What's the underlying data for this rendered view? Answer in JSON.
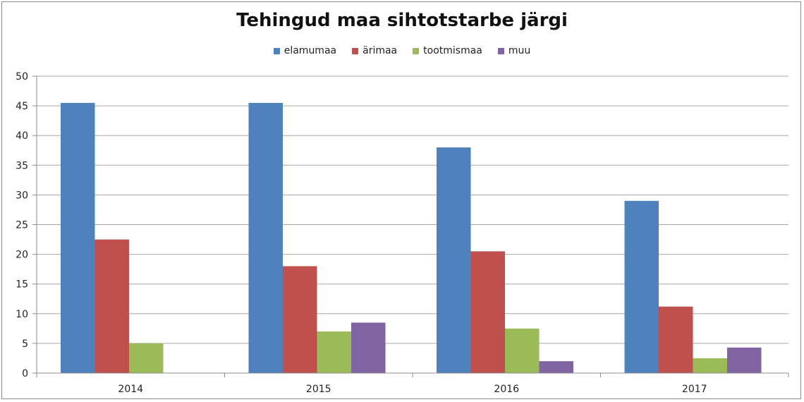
{
  "chart_data": {
    "type": "bar",
    "title": "Tehingud maa sihtotstarbe järgi",
    "xlabel": "",
    "ylabel": "",
    "categories": [
      "2014",
      "2015",
      "2016",
      "2017"
    ],
    "ylim": [
      0,
      50
    ],
    "yticks": [
      0,
      5,
      10,
      15,
      20,
      25,
      30,
      35,
      40,
      45,
      50
    ],
    "grid": true,
    "legend_position": "top",
    "series": [
      {
        "name": "elamumaa",
        "color": "#4F81BD",
        "values": [
          45.5,
          45.5,
          38,
          29
        ]
      },
      {
        "name": "ärimaa",
        "color": "#C0504D",
        "values": [
          22.5,
          18,
          20.5,
          11.2
        ]
      },
      {
        "name": "tootmismaa",
        "color": "#9BBB59",
        "values": [
          5,
          7,
          7.5,
          2.5
        ]
      },
      {
        "name": "muu",
        "color": "#8064A2",
        "values": [
          0,
          8.5,
          2,
          4.3
        ]
      }
    ]
  }
}
